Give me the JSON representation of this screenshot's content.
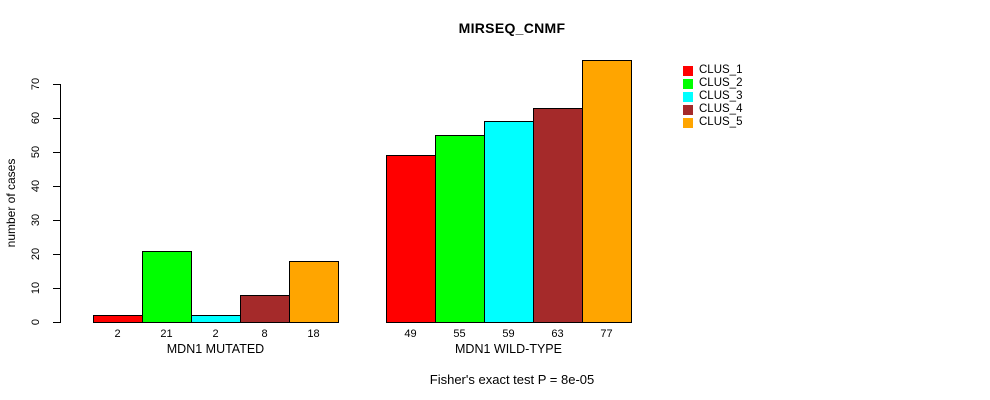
{
  "chart_data": {
    "type": "bar",
    "title": "MIRSEQ_CNMF",
    "ylabel": "number of cases",
    "xlabel": "",
    "ylim": [
      0,
      70
    ],
    "yticks": [
      0,
      10,
      20,
      30,
      40,
      50,
      60,
      70
    ],
    "grid": false,
    "legend_position": "right",
    "categories": [
      "MDN1 MUTATED",
      "MDN1 WILD-TYPE"
    ],
    "groups": [
      {
        "label": "MDN1 MUTATED",
        "values": [
          2,
          21,
          2,
          8,
          18
        ]
      },
      {
        "label": "MDN1 WILD-TYPE",
        "values": [
          49,
          55,
          59,
          63,
          77
        ]
      }
    ],
    "series": [
      {
        "name": "CLUS_1",
        "color": "#ff0000",
        "values": [
          2,
          49
        ]
      },
      {
        "name": "CLUS_2",
        "color": "#00ff00",
        "values": [
          21,
          55
        ]
      },
      {
        "name": "CLUS_3",
        "color": "#00ffff",
        "values": [
          2,
          59
        ]
      },
      {
        "name": "CLUS_4",
        "color": "#a52a2a",
        "values": [
          8,
          63
        ]
      },
      {
        "name": "CLUS_5",
        "color": "#ffa500",
        "values": [
          18,
          77
        ]
      }
    ],
    "footer": "Fisher's exact test P = 8e-05",
    "axis_color": "#000000",
    "background_color": "#ffffff"
  }
}
